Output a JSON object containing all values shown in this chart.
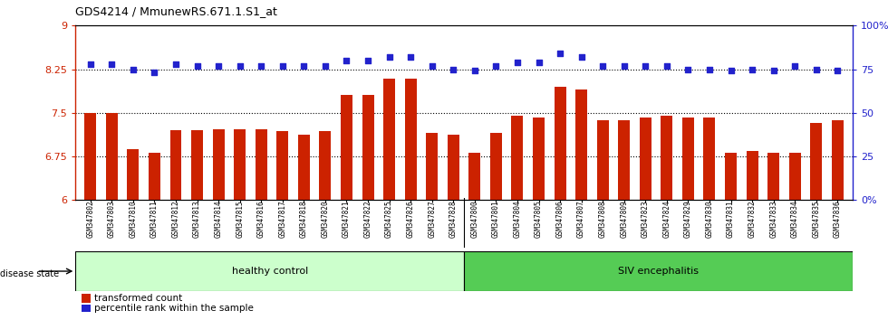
{
  "title": "GDS4214 / MmunewRS.671.1.S1_at",
  "samples": [
    "GSM347802",
    "GSM347803",
    "GSM347810",
    "GSM347811",
    "GSM347812",
    "GSM347813",
    "GSM347814",
    "GSM347815",
    "GSM347816",
    "GSM347817",
    "GSM347818",
    "GSM347820",
    "GSM347821",
    "GSM347822",
    "GSM347825",
    "GSM347826",
    "GSM347827",
    "GSM347828",
    "GSM347800",
    "GSM347801",
    "GSM347804",
    "GSM347805",
    "GSM347806",
    "GSM347807",
    "GSM347808",
    "GSM347809",
    "GSM347823",
    "GSM347824",
    "GSM347829",
    "GSM347830",
    "GSM347831",
    "GSM347832",
    "GSM347833",
    "GSM347834",
    "GSM347835",
    "GSM347836"
  ],
  "bar_values": [
    7.5,
    7.5,
    6.88,
    6.82,
    7.2,
    7.2,
    7.22,
    7.22,
    7.22,
    7.18,
    7.12,
    7.18,
    7.8,
    7.8,
    8.08,
    8.08,
    7.15,
    7.12,
    6.82,
    7.15,
    7.45,
    7.42,
    7.95,
    7.9,
    7.38,
    7.38,
    7.42,
    7.45,
    7.42,
    7.42,
    6.82,
    6.85,
    6.82,
    6.82,
    7.32,
    7.38
  ],
  "percentile_values": [
    78,
    78,
    75,
    73,
    78,
    77,
    77,
    77,
    77,
    77,
    77,
    77,
    80,
    80,
    82,
    82,
    77,
    75,
    74,
    77,
    79,
    79,
    84,
    82,
    77,
    77,
    77,
    77,
    75,
    75,
    74,
    75,
    74,
    77,
    75,
    74
  ],
  "ylim_left": [
    6.0,
    9.0
  ],
  "ylim_right": [
    0,
    100
  ],
  "yticks_left": [
    6.0,
    6.75,
    7.5,
    8.25,
    9.0
  ],
  "ytick_labels_left": [
    "6",
    "6.75",
    "7.5",
    "8.25",
    "9"
  ],
  "yticks_right": [
    0,
    25,
    50,
    75,
    100
  ],
  "ytick_labels_right": [
    "0%",
    "25",
    "50",
    "75",
    "100%"
  ],
  "hlines": [
    6.75,
    7.5,
    8.25
  ],
  "bar_color": "#CC2200",
  "dot_color": "#2222CC",
  "healthy_control_count": 18,
  "healthy_label": "healthy control",
  "siv_label": "SIV encephalitis",
  "disease_state_label": "disease state",
  "legend_bar_label": "transformed count",
  "legend_dot_label": "percentile rank within the sample",
  "healthy_fill": "#CCFFCC",
  "siv_fill": "#55CC55",
  "baseline": 6.0
}
